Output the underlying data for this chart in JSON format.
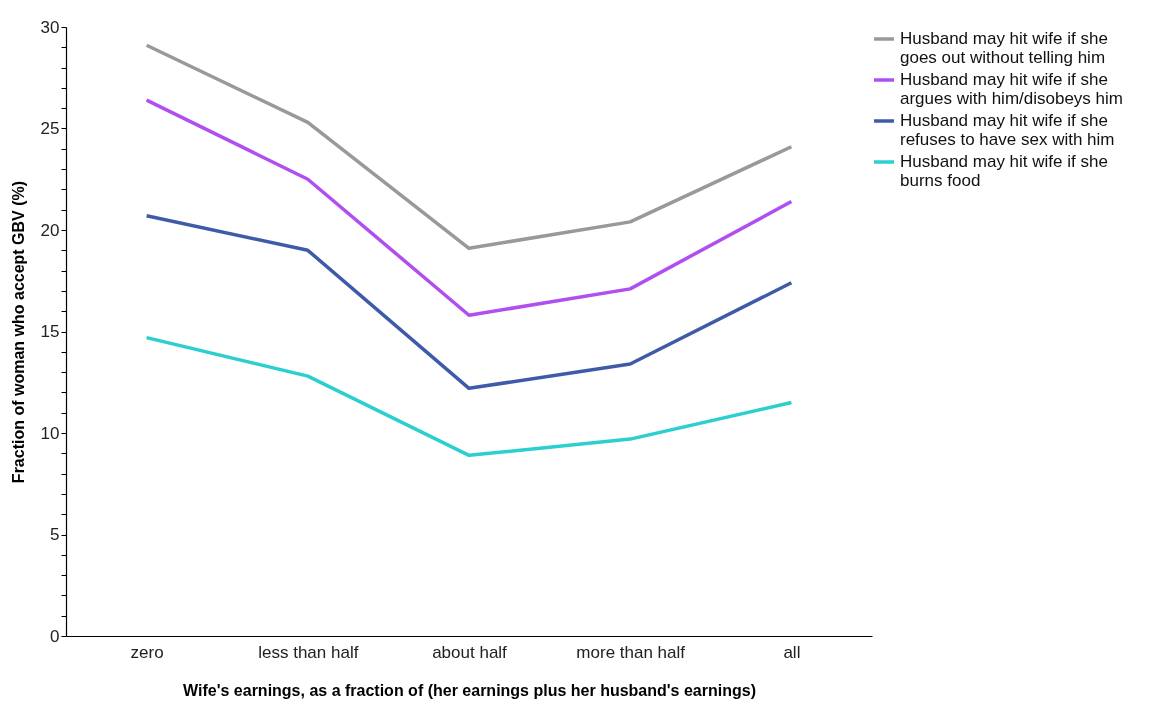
{
  "chart_data": {
    "type": "line",
    "xlabel": "Wife's earnings, as a fraction of (her earnings plus her husband's earnings)",
    "ylabel": "Fraction of woman who accept GBV (%)",
    "categories": [
      "zero",
      "less than half",
      "about half",
      "more than half",
      "all"
    ],
    "ylim": [
      0,
      30
    ],
    "yticks": [
      0,
      {
        "value": 1,
        "label": null
      },
      {
        "value": 2,
        "label": null
      },
      {
        "value": 3,
        "label": null
      },
      {
        "value": 4,
        "label": null
      },
      5,
      {
        "value": 6,
        "label": null
      },
      {
        "value": 7,
        "label": null
      },
      {
        "value": 8,
        "label": null
      },
      {
        "value": 9,
        "label": null
      },
      10,
      {
        "value": 11,
        "label": null
      },
      {
        "value": 12,
        "label": null
      },
      {
        "value": 13,
        "label": null
      },
      {
        "value": 14,
        "label": null
      },
      15,
      {
        "value": 16,
        "label": null
      },
      {
        "value": 17,
        "label": null
      },
      {
        "value": 18,
        "label": null
      },
      {
        "value": 19,
        "label": null
      },
      20,
      {
        "value": 21,
        "label": null
      },
      {
        "value": 22,
        "label": null
      },
      {
        "value": 23,
        "label": null
      },
      {
        "value": 24,
        "label": null
      },
      25,
      {
        "value": 26,
        "label": null
      },
      {
        "value": 27,
        "label": null
      },
      {
        "value": 28,
        "label": null
      },
      {
        "value": 29,
        "label": null
      },
      30
    ],
    "grid": false,
    "legend": "right",
    "series": [
      {
        "name": "Husband may hit wife if she goes out without telling him",
        "color": "#999999",
        "values": [
          29.1,
          25.3,
          19.1,
          20.4,
          24.1
        ]
      },
      {
        "name": "Husband may hit wife if she argues with him/disobeys him",
        "color": "#b04ef0",
        "values": [
          26.4,
          22.5,
          15.8,
          17.1,
          21.4
        ]
      },
      {
        "name": "Husband may hit wife if she refuses to have sex with him",
        "color": "#3f5aa8",
        "values": [
          20.7,
          19.0,
          12.2,
          13.4,
          17.4
        ]
      },
      {
        "name": "Husband may hit wife if she burns food",
        "color": "#2ccfcf",
        "values": [
          14.7,
          12.8,
          8.9,
          9.7,
          11.5
        ]
      }
    ]
  }
}
